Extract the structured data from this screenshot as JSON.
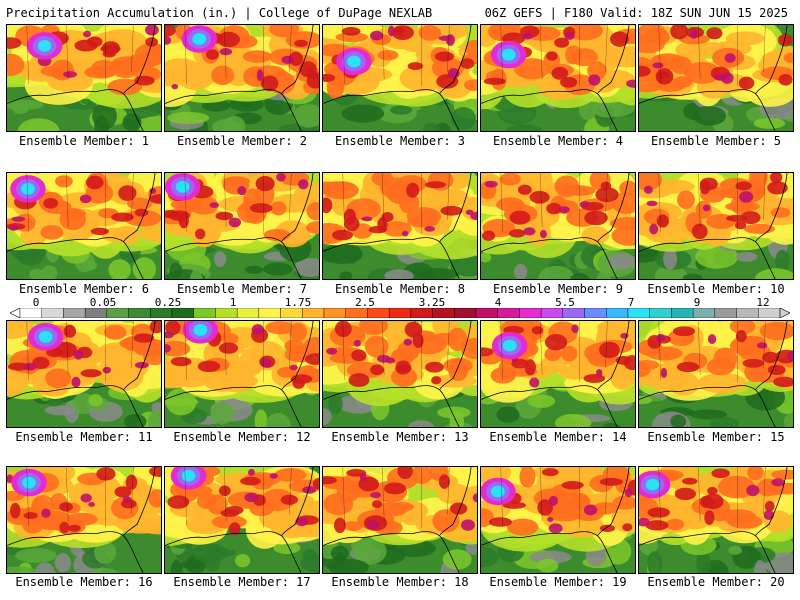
{
  "header": {
    "left_title": "Precipitation Accumulation (in.) | College of DuPage NEXLAB",
    "right_title": "06Z GEFS | F180 Valid: 18Z SUN JUN 15 2025"
  },
  "colorbar": {
    "labels": [
      "0",
      "0.05",
      "0.25",
      "1",
      "1.75",
      "2.5",
      "3.25",
      "4",
      "5.5",
      "7",
      "9",
      "12"
    ],
    "colors": [
      "#ffffff",
      "#d9d9d9",
      "#a6a6a6",
      "#7f7f7f",
      "#5e9e4a",
      "#3f8a35",
      "#2a7a2a",
      "#1e6b1e",
      "#7cc72a",
      "#b5e02a",
      "#e8f23a",
      "#fff34a",
      "#ffd93a",
      "#ffb52e",
      "#ff9326",
      "#ff6e1e",
      "#ff4a18",
      "#ee2a14",
      "#d11a1a",
      "#b5141e",
      "#a0102e",
      "#c0106a",
      "#d61a9a",
      "#e62ad0",
      "#c84af0",
      "#9a6af5",
      "#6a8cff",
      "#3ab8ff",
      "#2ae2f5",
      "#30d0d0",
      "#2ab5b5",
      "#7ab0b0",
      "#9a9a9a",
      "#b8b8b8",
      "#d0d0d0"
    ]
  },
  "panels": [
    {
      "label": "Ensemble Member: 1"
    },
    {
      "label": "Ensemble Member: 2"
    },
    {
      "label": "Ensemble Member: 3"
    },
    {
      "label": "Ensemble Member: 4"
    },
    {
      "label": "Ensemble Member: 5"
    },
    {
      "label": "Ensemble Member: 6"
    },
    {
      "label": "Ensemble Member: 7"
    },
    {
      "label": "Ensemble Member: 8"
    },
    {
      "label": "Ensemble Member: 9"
    },
    {
      "label": "Ensemble Member: 10"
    },
    {
      "label": "Ensemble Member: 11"
    },
    {
      "label": "Ensemble Member: 12"
    },
    {
      "label": "Ensemble Member: 13"
    },
    {
      "label": "Ensemble Member: 14"
    },
    {
      "label": "Ensemble Member: 15"
    },
    {
      "label": "Ensemble Member: 16"
    },
    {
      "label": "Ensemble Member: 17"
    },
    {
      "label": "Ensemble Member: 18"
    },
    {
      "label": "Ensemble Member: 19"
    },
    {
      "label": "Ensemble Member: 20"
    }
  ]
}
